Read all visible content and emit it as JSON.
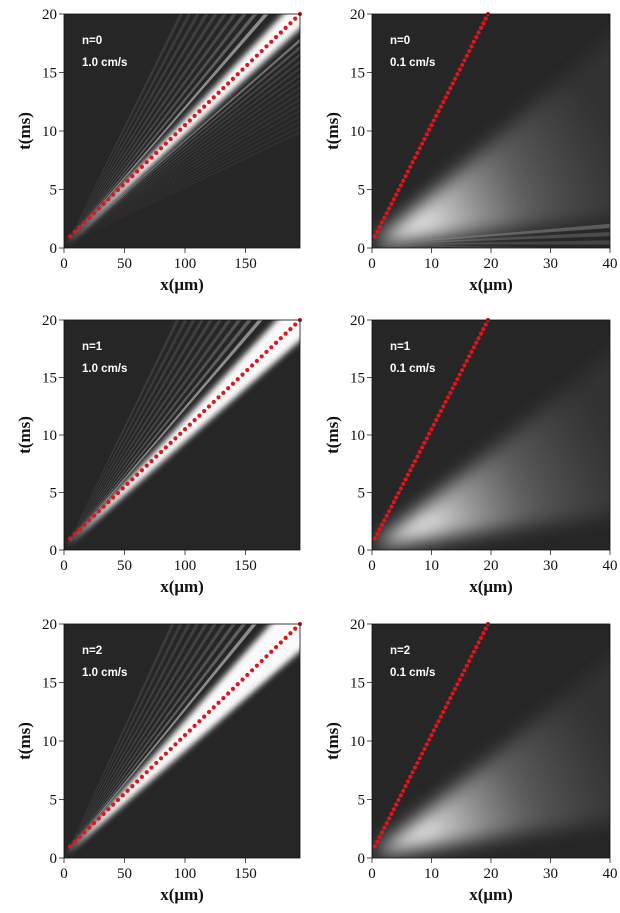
{
  "figure": {
    "background": "#ffffff",
    "plot_background": "#262626",
    "trajectory_color": "#e3131b"
  },
  "chart_data": [
    {
      "type": "heatmap",
      "label_n": "n=0",
      "label_v": "1.0 cm/s",
      "xlabel": "x(μm)",
      "ylabel": "t(ms)",
      "xlim": [
        0,
        195
      ],
      "ylim": [
        0,
        20
      ],
      "xticks": [
        0,
        50,
        100,
        150
      ],
      "yticks": [
        0,
        5,
        10,
        15,
        20
      ],
      "trajectory": {
        "x": [
          5,
          195
        ],
        "y": [
          1,
          20
        ]
      },
      "beam": {
        "center_slope": 1.0,
        "width": 0.07,
        "fringe": "both",
        "near_field": false
      }
    },
    {
      "type": "heatmap",
      "label_n": "n=0",
      "label_v": "0.1 cm/s",
      "xlabel": "x(μm)",
      "ylabel": "t(ms)",
      "xlim": [
        0,
        40
      ],
      "ylim": [
        0,
        20
      ],
      "xticks": [
        0,
        10,
        20,
        30,
        40
      ],
      "yticks": [
        0,
        5,
        10,
        15,
        20
      ],
      "trajectory": {
        "x": [
          0.5,
          19.5
        ],
        "y": [
          1,
          20
        ]
      },
      "beam": {
        "center_slope": 2.6,
        "width": 0.55,
        "fringe": "below",
        "near_field": true
      }
    },
    {
      "type": "heatmap",
      "label_n": "n=1",
      "label_v": "1.0 cm/s",
      "xlabel": "x(μm)",
      "ylabel": "t(ms)",
      "xlim": [
        0,
        195
      ],
      "ylim": [
        0,
        20
      ],
      "xticks": [
        0,
        50,
        100,
        150
      ],
      "yticks": [
        0,
        5,
        10,
        15,
        20
      ],
      "trajectory": {
        "x": [
          5,
          195
        ],
        "y": [
          1,
          20
        ]
      },
      "beam": {
        "center_slope": 1.0,
        "width": 0.1,
        "fringe": "above",
        "near_field": false
      }
    },
    {
      "type": "heatmap",
      "label_n": "n=1",
      "label_v": "0.1 cm/s",
      "xlabel": "x(μm)",
      "ylabel": "t(ms)",
      "xlim": [
        0,
        40
      ],
      "ylim": [
        0,
        20
      ],
      "xticks": [
        0,
        10,
        20,
        30,
        40
      ],
      "yticks": [
        0,
        5,
        10,
        15,
        20
      ],
      "trajectory": {
        "x": [
          0.5,
          19.5
        ],
        "y": [
          1,
          20
        ]
      },
      "beam": {
        "center_slope": 2.6,
        "width": 0.5,
        "fringe": "none",
        "near_field": true
      }
    },
    {
      "type": "heatmap",
      "label_n": "n=2",
      "label_v": "1.0 cm/s",
      "xlabel": "x(μm)",
      "ylabel": "t(ms)",
      "xlim": [
        0,
        195
      ],
      "ylim": [
        0,
        20
      ],
      "xticks": [
        0,
        50,
        100,
        150
      ],
      "yticks": [
        0,
        5,
        10,
        15,
        20
      ],
      "trajectory": {
        "x": [
          5,
          195
        ],
        "y": [
          1,
          20
        ]
      },
      "beam": {
        "center_slope": 1.0,
        "width": 0.13,
        "fringe": "above",
        "near_field": false
      }
    },
    {
      "type": "heatmap",
      "label_n": "n=2",
      "label_v": "0.1 cm/s",
      "xlabel": "x(μm)",
      "ylabel": "t(ms)",
      "xlim": [
        0,
        40
      ],
      "ylim": [
        0,
        20
      ],
      "xticks": [
        0,
        10,
        20,
        30,
        40
      ],
      "yticks": [
        0,
        5,
        10,
        15,
        20
      ],
      "trajectory": {
        "x": [
          0.5,
          19.5
        ],
        "y": [
          1,
          20
        ]
      },
      "beam": {
        "center_slope": 2.6,
        "width": 0.5,
        "fringe": "none",
        "near_field": true
      }
    }
  ]
}
